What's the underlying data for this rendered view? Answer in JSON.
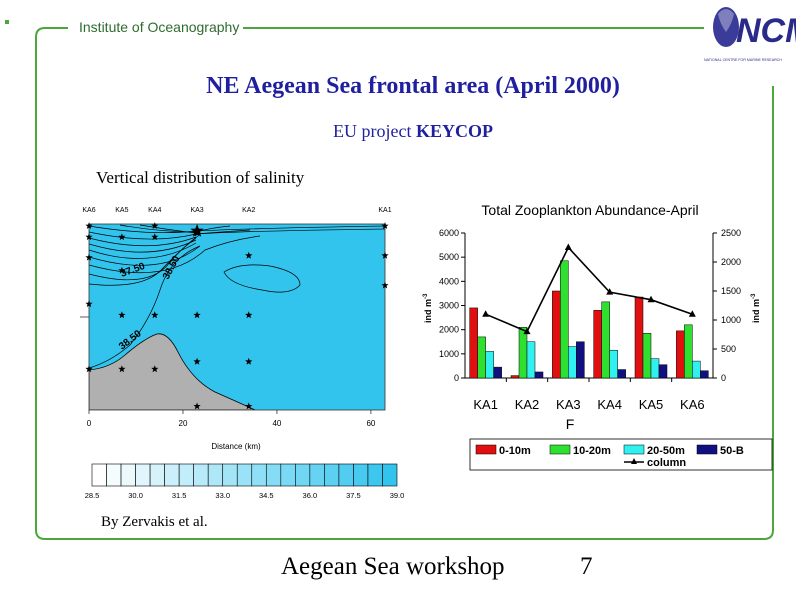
{
  "header": {
    "institute": "Institute of Oceanography",
    "logo_text": "NCMR",
    "logo_subtext": "NATIONAL CENTRE FOR MARINE RESEARCH"
  },
  "slide": {
    "title": "NE Aegean Sea frontal area (April 2000)",
    "subtitle_prefix": "EU project ",
    "subtitle_bold": "KEYCOP",
    "credit": "By Zervakis et al.",
    "footer": "Aegean Sea workshop",
    "page_number": "7"
  },
  "colors": {
    "frame": "#4aa83a",
    "title": "#1f1fa0",
    "water": "#33c4ee",
    "seabed": "#b0b0b0"
  },
  "chart_data": [
    {
      "type": "heatmap",
      "title": "Vertical distribution of salinity",
      "xlabel": "Distance (km)",
      "xlim": [
        0,
        63
      ],
      "xticks": [
        "0",
        "20",
        "40",
        "60"
      ],
      "stations": [
        {
          "name": "KA6",
          "x": 0
        },
        {
          "name": "KA5",
          "x": 7
        },
        {
          "name": "KA4",
          "x": 14
        },
        {
          "name": "KA3",
          "x": 23
        },
        {
          "name": "KA2",
          "x": 34
        },
        {
          "name": "KA1",
          "x": 63
        }
      ],
      "contour_labels": [
        "37.50",
        "38.50",
        "38.50"
      ],
      "colorbar_ticks": [
        "28.5",
        "30.0",
        "31.5",
        "33.0",
        "34.5",
        "36.0",
        "37.5",
        "39.0"
      ],
      "colorbar_range": [
        28.5,
        39.0
      ]
    },
    {
      "type": "bar",
      "title": "Total Zooplankton Abundance-April",
      "categories": [
        "KA1",
        "KA2",
        "KA3",
        "KA4",
        "KA5",
        "KA6"
      ],
      "xlabel": "F",
      "ylabel_left": "ind m",
      "ylabel_right": "ind m",
      "ylabel_sup": "-3",
      "ylim_left": [
        0,
        6000
      ],
      "ylim_right": [
        0,
        2500
      ],
      "yticks_left": [
        "0",
        "1000",
        "2000",
        "3000",
        "4000",
        "5000",
        "6000"
      ],
      "yticks_right": [
        "0",
        "500",
        "1000",
        "1500",
        "2000",
        "2500"
      ],
      "series": [
        {
          "name": "0-10m",
          "color": "#e01010",
          "values": [
            2900,
            100,
            3600,
            2800,
            3350,
            1950
          ]
        },
        {
          "name": "10-20m",
          "color": "#30e030",
          "values": [
            1700,
            2100,
            4850,
            3150,
            1850,
            2200
          ]
        },
        {
          "name": "20-50m",
          "color": "#30f0f0",
          "values": [
            1100,
            1500,
            1300,
            1150,
            800,
            700
          ]
        },
        {
          "name": "50-B",
          "color": "#101080",
          "values": [
            450,
            250,
            1500,
            350,
            550,
            300
          ]
        }
      ],
      "line_series": {
        "name": "column",
        "axis": "right",
        "values": [
          1100,
          800,
          2250,
          1480,
          1350,
          1100
        ]
      },
      "legend_position": "bottom"
    }
  ]
}
